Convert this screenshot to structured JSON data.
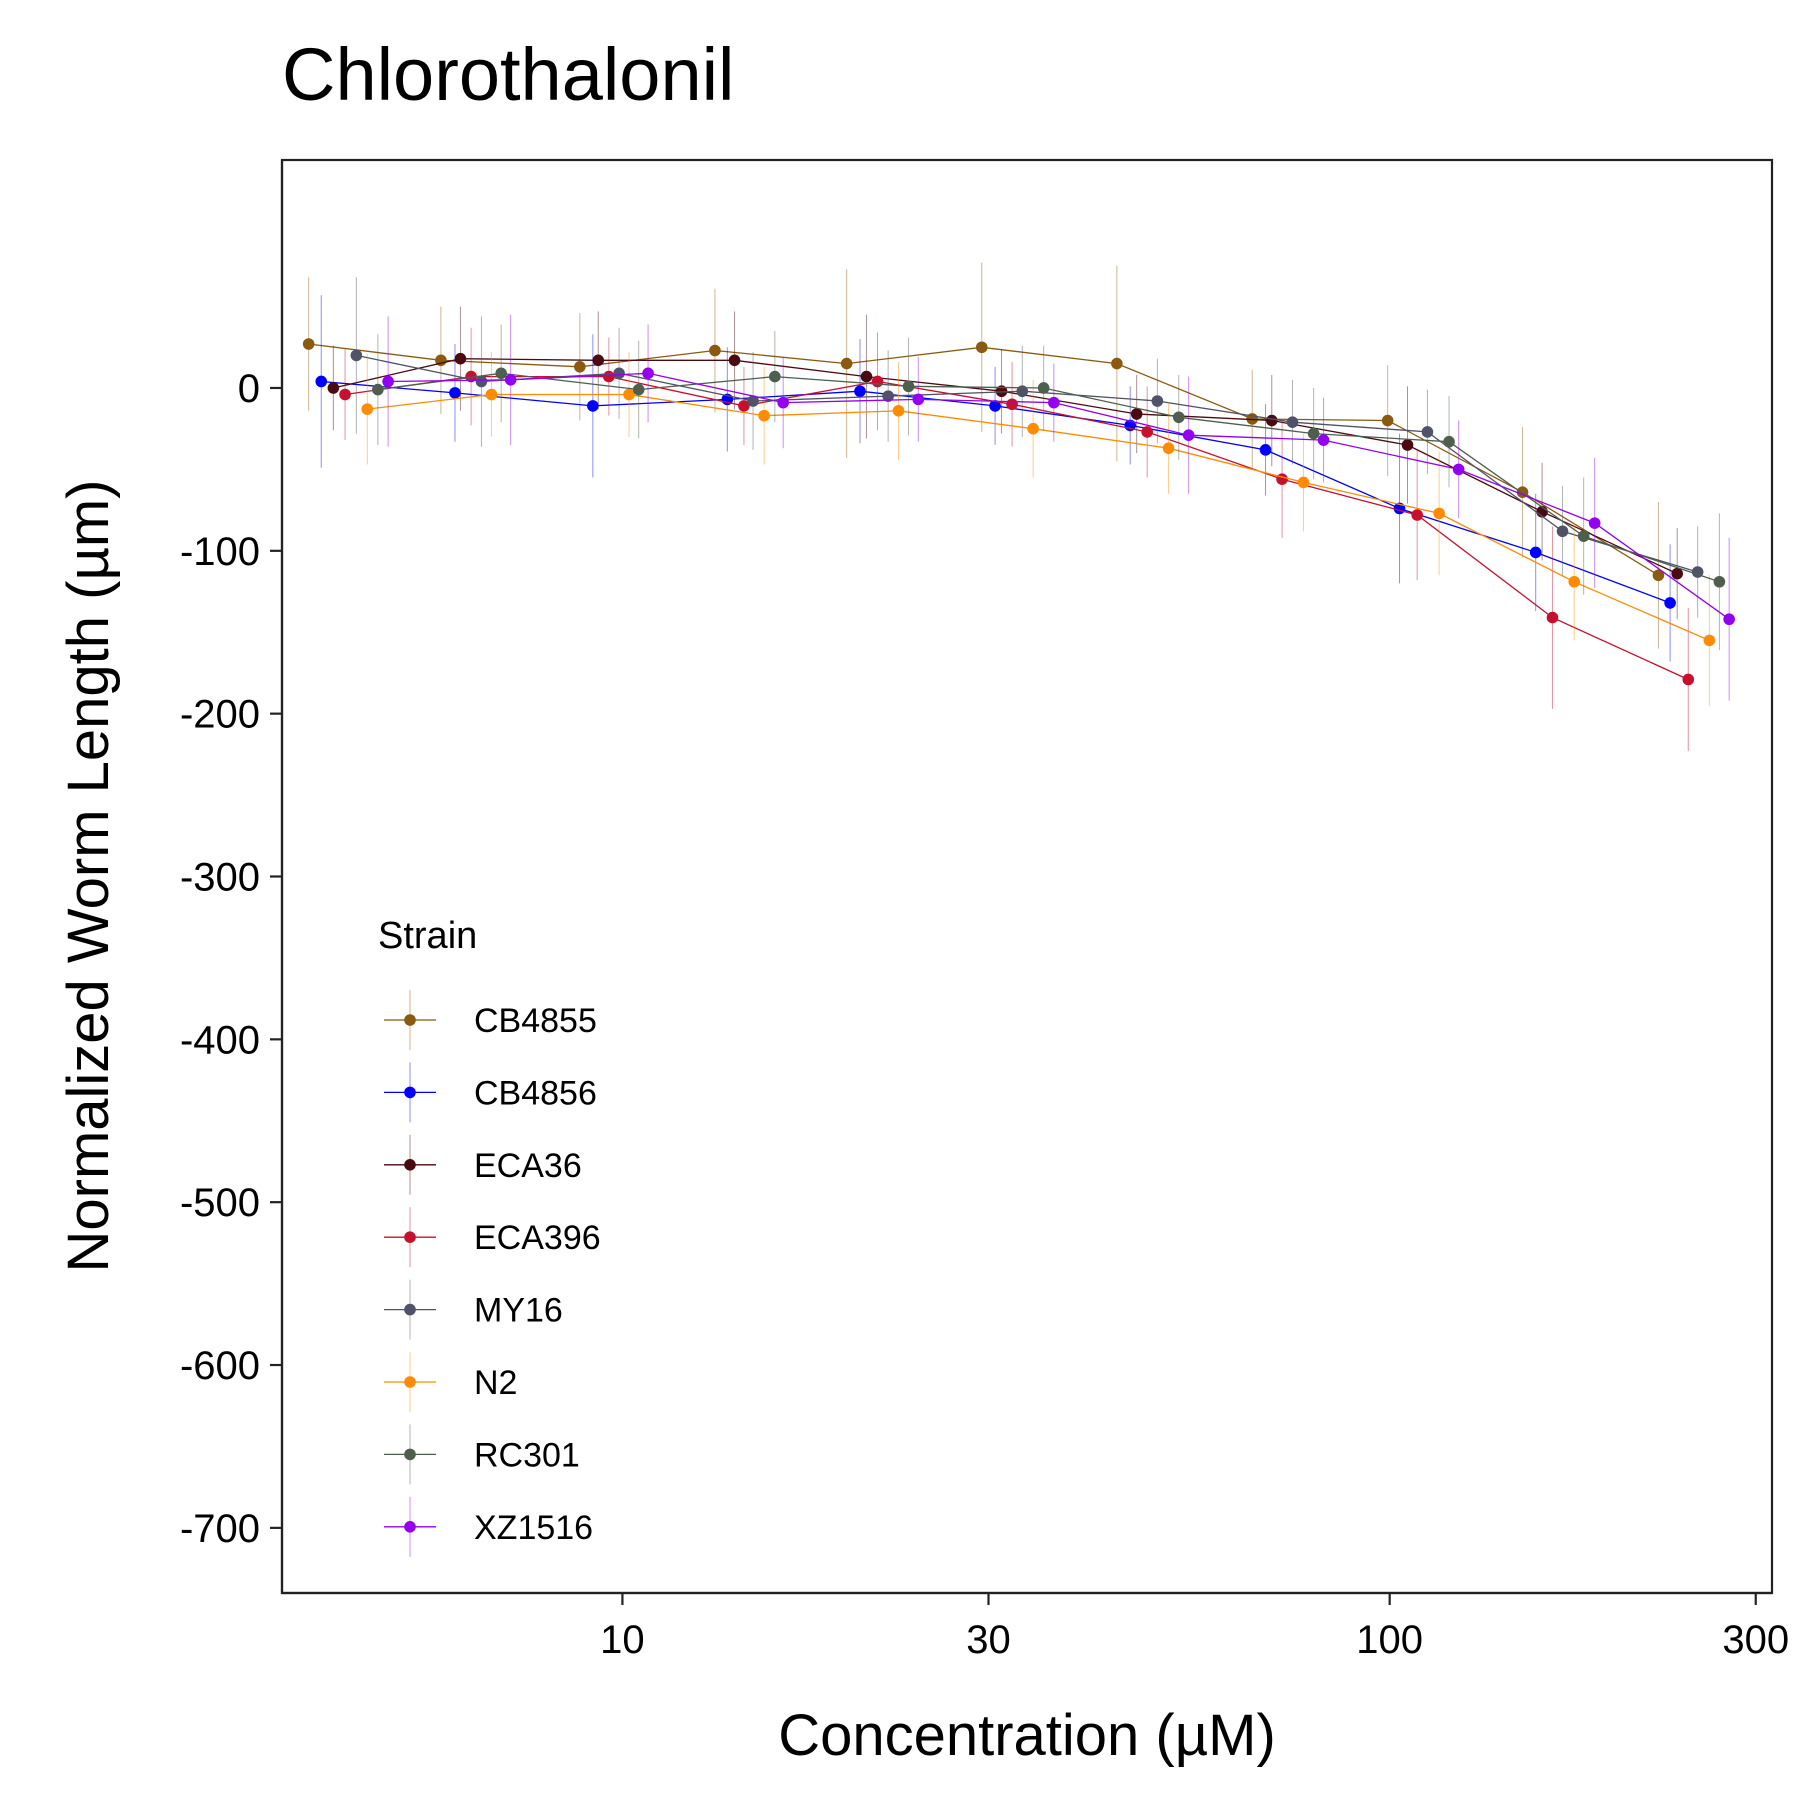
{
  "chart_data": {
    "type": "line",
    "title": "Chlorothalonil",
    "xlabel": "Concentration (µM)",
    "ylabel": "Normalized Worm Length (µm)",
    "x_scale": "log",
    "xlim": [
      3.6,
      315
    ],
    "ylim": [
      -740,
      140
    ],
    "x_ticks": [
      10,
      30,
      100,
      300
    ],
    "x_tick_labels": [
      "10",
      "30",
      "100",
      "300"
    ],
    "y_ticks": [
      0,
      -100,
      -200,
      -300,
      -400,
      -500,
      -600,
      -700
    ],
    "y_tick_labels": [
      "0",
      "-100",
      "-200",
      "-300",
      "-400",
      "-500",
      "-600",
      "-700"
    ],
    "grid": false,
    "legend": {
      "title": "Strain",
      "position": "inside-bottom-left"
    },
    "concentrations": [
      4,
      6,
      9,
      13.5,
      20,
      30,
      45,
      67,
      100,
      150,
      225
    ],
    "series": [
      {
        "name": "CB4855",
        "color": "#8B5A0F",
        "x": [
          3.9,
          5.8,
          8.8,
          13.2,
          19.6,
          29.4,
          44.1,
          66.2,
          99.4,
          149,
          224
        ],
        "y": [
          27,
          17,
          13,
          23,
          15,
          25,
          15,
          -19,
          -20,
          -64,
          -115
        ],
        "err": [
          41,
          33,
          33,
          38,
          58,
          52,
          60,
          30,
          34,
          40,
          45
        ]
      },
      {
        "name": "CB4856",
        "color": "#0000FF",
        "x": [
          4.05,
          6.05,
          9.15,
          13.7,
          20.4,
          30.6,
          45.9,
          68.9,
          103,
          155,
          232
        ],
        "y": [
          4,
          -3,
          -11,
          -7,
          -2,
          -11,
          -23,
          -38,
          -74,
          -101,
          -132
        ],
        "err": [
          53,
          30,
          44,
          32,
          32,
          24,
          24,
          28,
          46,
          36,
          36
        ]
      },
      {
        "name": "ECA36",
        "color": "#4A0A10",
        "x": [
          4.2,
          6.15,
          9.3,
          14.0,
          20.8,
          31.2,
          46.8,
          70.2,
          105.5,
          158,
          237
        ],
        "y": [
          0,
          18,
          17,
          17,
          7,
          -2,
          -16,
          -20,
          -35,
          -76,
          -114
        ],
        "err": [
          26,
          32,
          30,
          30,
          38,
          26,
          24,
          28,
          36,
          30,
          28
        ]
      },
      {
        "name": "ECA396",
        "color": "#C8102E",
        "x": [
          4.35,
          6.35,
          9.6,
          14.4,
          21.5,
          32.2,
          48.3,
          72.4,
          108.6,
          163,
          245
        ],
        "y": [
          -4,
          7,
          7,
          -11,
          4,
          -10,
          -27,
          -56,
          -78,
          -141,
          -179
        ],
        "err": [
          28,
          30,
          24,
          24,
          30,
          26,
          28,
          36,
          40,
          56,
          44
        ]
      },
      {
        "name": "MY16",
        "color": "#4F5268",
        "x": [
          4.5,
          6.55,
          9.9,
          14.8,
          22.2,
          33.2,
          49.8,
          74.7,
          112,
          168,
          252
        ],
        "y": [
          20,
          4,
          9,
          -8,
          -5,
          -2,
          -8,
          -21,
          -27,
          -88,
          -113
        ],
        "err": [
          48,
          40,
          28,
          30,
          28,
          28,
          26,
          26,
          26,
          28,
          28
        ]
      },
      {
        "name": "N2",
        "color": "#FF8C00",
        "x": [
          4.65,
          6.75,
          10.2,
          15.3,
          22.9,
          34.3,
          51.5,
          77.2,
          116,
          174,
          261
        ],
        "y": [
          -13,
          -4,
          -4,
          -17,
          -14,
          -25,
          -37,
          -58,
          -77,
          -119,
          -155
        ],
        "err": [
          34,
          26,
          26,
          30,
          30,
          30,
          28,
          30,
          38,
          36,
          40
        ]
      },
      {
        "name": "RC301",
        "color": "#4E5F4E",
        "x": [
          4.8,
          6.95,
          10.5,
          15.8,
          23.6,
          35.4,
          53.1,
          79.6,
          119.5,
          179,
          269
        ],
        "y": [
          -1,
          9,
          -1,
          7,
          1,
          0,
          -18,
          -28,
          -33,
          -91,
          -119
        ],
        "err": [
          34,
          30,
          30,
          28,
          30,
          26,
          26,
          28,
          28,
          36,
          42
        ]
      },
      {
        "name": "XZ1516",
        "color": "#9400F0",
        "x": [
          4.95,
          7.15,
          10.8,
          16.2,
          24.3,
          36.5,
          54.7,
          82.0,
          123,
          185,
          277
        ],
        "y": [
          4,
          5,
          9,
          -9,
          -7,
          -9,
          -29,
          -32,
          -50,
          -83,
          -142
        ],
        "err": [
          40,
          40,
          30,
          28,
          26,
          24,
          36,
          26,
          30,
          40,
          50
        ]
      }
    ]
  }
}
